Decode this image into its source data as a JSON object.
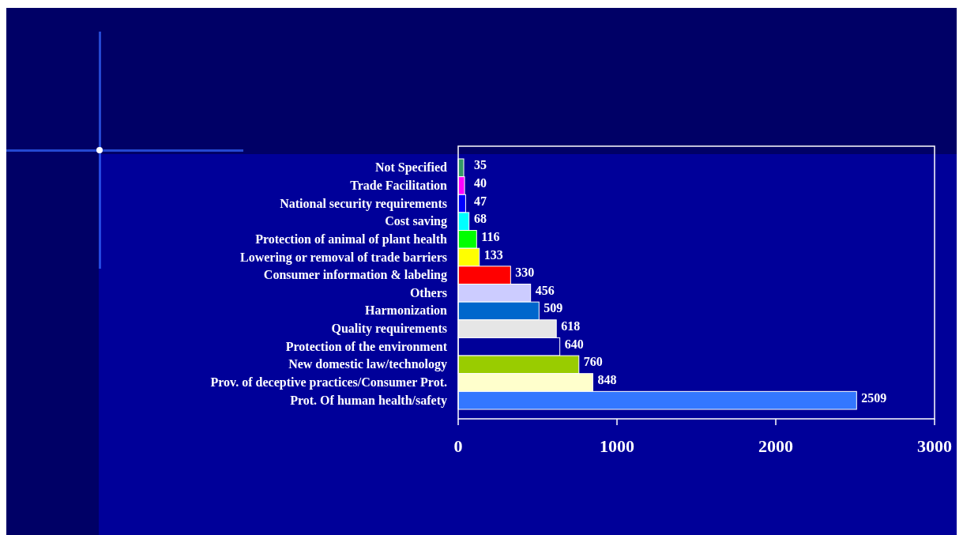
{
  "chart_data": {
    "type": "bar",
    "orientation": "horizontal",
    "categories": [
      "Not Specified",
      "Trade Facilitation",
      "National security requirements",
      "Cost saving",
      "Protection of animal of plant health",
      "Lowering or removal of trade barriers",
      "Consumer information & labeling",
      "Others",
      "Harmonization",
      "Quality requirements",
      "Protection of the environment",
      "New domestic law/technology",
      "Prov. of deceptive practices/Consumer Prot.",
      "Prot. Of human health/safety"
    ],
    "values": [
      35,
      40,
      47,
      68,
      116,
      133,
      330,
      456,
      509,
      618,
      640,
      760,
      848,
      2509
    ],
    "colors": [
      "#339966",
      "#ff00ff",
      "#0000ff",
      "#00ffff",
      "#00ff00",
      "#ffff00",
      "#ff0000",
      "#ccccff",
      "#0066cc",
      "#e6e6e6",
      "#000099",
      "#99cc00",
      "#ffffcc",
      "#3377ff"
    ],
    "xlim": [
      0,
      3000
    ],
    "xticks": [
      0,
      1000,
      2000,
      3000
    ],
    "data_labels": true
  }
}
